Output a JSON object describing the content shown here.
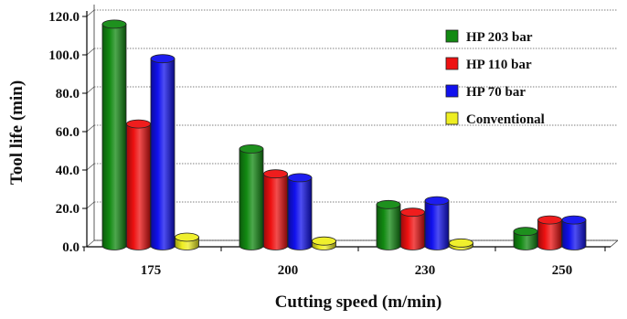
{
  "chart_data": {
    "type": "bar",
    "title": "",
    "xlabel": "Cutting speed (m/min)",
    "ylabel": "Tool life (min)",
    "ylim": [
      0,
      120
    ],
    "yticks": [
      "0.0",
      "20.0",
      "40.0",
      "60.0",
      "80.0",
      "100.0",
      "120.0"
    ],
    "categories": [
      "175",
      "200",
      "230",
      "250"
    ],
    "series": [
      {
        "name": "HP 203 bar",
        "color": "#128a12",
        "values": [
          116,
          51,
          22,
          8
        ]
      },
      {
        "name": "HP 110 bar",
        "color": "#ee1111",
        "values": [
          64,
          38,
          18,
          14
        ]
      },
      {
        "name": "HP 70 bar",
        "color": "#1111ee",
        "values": [
          98,
          36,
          24,
          14
        ]
      },
      {
        "name": "Conventional",
        "color": "#eeee22",
        "values": [
          5,
          3,
          2,
          null
        ]
      }
    ],
    "grid": true,
    "legend_position": "top-right"
  }
}
